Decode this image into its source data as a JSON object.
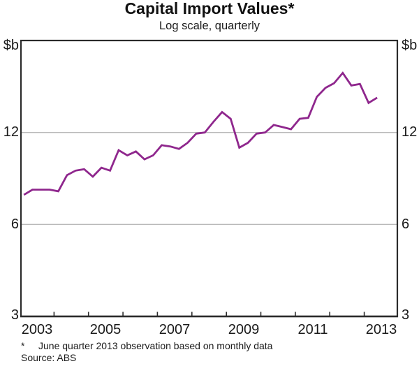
{
  "header": {
    "title": "Capital Import Values*",
    "subtitle": "Log scale, quarterly"
  },
  "y_axis": {
    "unit": "$b",
    "ticks": [
      "12",
      "6",
      "3"
    ]
  },
  "x_axis": {
    "labels": [
      "2003",
      "2005",
      "2007",
      "2009",
      "2011",
      "2013"
    ]
  },
  "footnote": {
    "marker": "*",
    "text": "June quarter 2013 observation based on monthly data",
    "source": "Source: ABS"
  },
  "colors": {
    "line": "#8F278D",
    "grid": "#b9b9b9",
    "axis": "#2b2b2b",
    "text": "#1a1a1a"
  },
  "chart_data": {
    "type": "line",
    "title": "Capital Import Values*",
    "subtitle": "Log scale, quarterly",
    "unit": "$b",
    "scale": "log",
    "ylim": [
      3,
      24
    ],
    "yticks": [
      3,
      6,
      12
    ],
    "gridlines": [
      6,
      12
    ],
    "x_tick_years": [
      2004,
      2005,
      2006,
      2007,
      2008,
      2009,
      2010,
      2011,
      2012,
      2013
    ],
    "x_start": "2003Q1",
    "x_end": "2013Q2",
    "grid": "horizontal-only",
    "legend": "none",
    "source": "ABS",
    "categories": [
      "2003Q1",
      "2003Q2",
      "2003Q3",
      "2003Q4",
      "2004Q1",
      "2004Q2",
      "2004Q3",
      "2004Q4",
      "2005Q1",
      "2005Q2",
      "2005Q3",
      "2005Q4",
      "2006Q1",
      "2006Q2",
      "2006Q3",
      "2006Q4",
      "2007Q1",
      "2007Q2",
      "2007Q3",
      "2007Q4",
      "2008Q1",
      "2008Q2",
      "2008Q3",
      "2008Q4",
      "2009Q1",
      "2009Q2",
      "2009Q3",
      "2009Q4",
      "2010Q1",
      "2010Q2",
      "2010Q3",
      "2010Q4",
      "2011Q1",
      "2011Q2",
      "2011Q3",
      "2011Q4",
      "2012Q1",
      "2012Q2",
      "2012Q3",
      "2012Q4",
      "2013Q1",
      "2013Q2"
    ],
    "series": [
      {
        "name": "Capital import values",
        "color": "#8F278D",
        "values": [
          7.5,
          7.8,
          7.8,
          7.8,
          7.7,
          8.7,
          9.0,
          9.1,
          8.6,
          9.2,
          9.0,
          10.5,
          10.1,
          10.4,
          9.8,
          10.1,
          10.9,
          10.8,
          10.6,
          11.1,
          11.9,
          12.0,
          13.0,
          14.0,
          13.3,
          10.7,
          11.1,
          11.9,
          12.0,
          12.7,
          12.5,
          12.3,
          13.3,
          13.4,
          15.7,
          16.8,
          17.4,
          18.8,
          17.1,
          17.3,
          15.0,
          15.6
        ]
      }
    ]
  }
}
